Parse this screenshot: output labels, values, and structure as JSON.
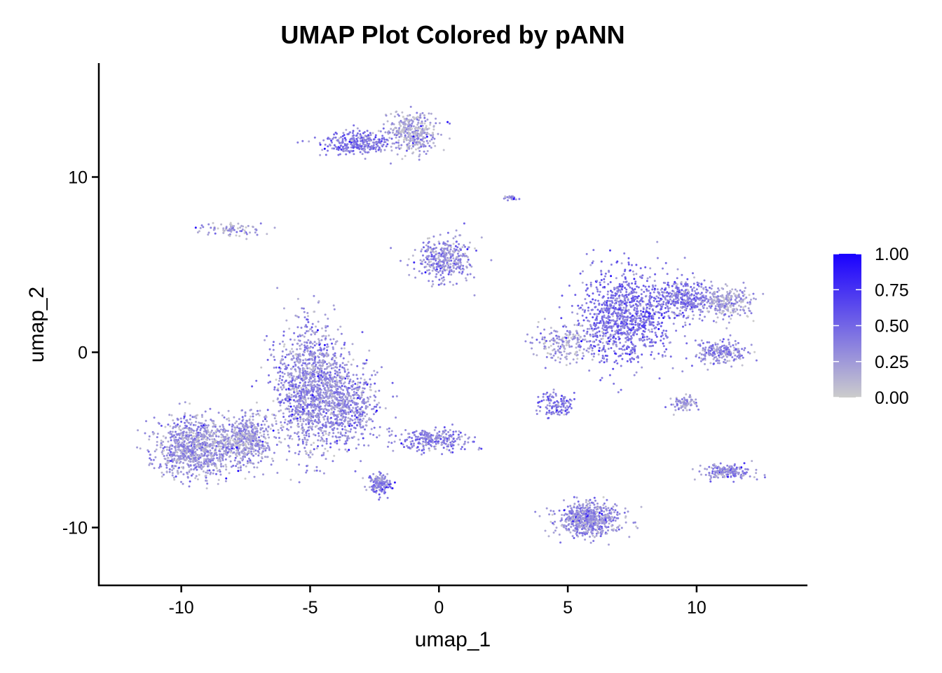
{
  "chart_data": {
    "type": "scatter",
    "title": "UMAP Plot Colored by pANN",
    "xlabel": "umap_1",
    "ylabel": "umap_2",
    "xlim": [
      -13.2,
      14.3
    ],
    "ylim": [
      -13.3,
      16.5
    ],
    "xticks": [
      -10,
      -5,
      0,
      5,
      10
    ],
    "xtick_labels": [
      "-10",
      "-5",
      "0",
      "5",
      "10"
    ],
    "yticks": [
      -10,
      0,
      10
    ],
    "ytick_labels": [
      "-10",
      "0",
      "10"
    ],
    "grid": false,
    "legend_position": "right",
    "color_scale": {
      "variable": "pANN",
      "low_color": "#cccccc",
      "high_color": "#1a00ff",
      "range": [
        0.0,
        1.0
      ],
      "ticks": [
        1.0,
        0.75,
        0.5,
        0.25,
        0.0
      ],
      "tick_labels": [
        "1.00",
        "0.75",
        "0.50",
        "0.25",
        "0.00"
      ]
    },
    "clusters": [
      {
        "center": [
          -9.5,
          -5.5
        ],
        "spread": [
          1.4,
          1.5
        ],
        "n": 900,
        "mean_pANN": 0.25
      },
      {
        "center": [
          -7.5,
          -5.0
        ],
        "spread": [
          1.0,
          1.4
        ],
        "n": 500,
        "mean_pANN": 0.25
      },
      {
        "center": [
          -5.0,
          -2.0
        ],
        "spread": [
          1.2,
          3.2
        ],
        "n": 1300,
        "mean_pANN": 0.3
      },
      {
        "center": [
          -3.5,
          -3.0
        ],
        "spread": [
          1.0,
          2.0
        ],
        "n": 500,
        "mean_pANN": 0.3
      },
      {
        "center": [
          -2.3,
          -7.5
        ],
        "spread": [
          0.4,
          0.5
        ],
        "n": 150,
        "mean_pANN": 0.35
      },
      {
        "center": [
          -0.3,
          -5.0
        ],
        "spread": [
          1.3,
          0.6
        ],
        "n": 250,
        "mean_pANN": 0.35
      },
      {
        "center": [
          -1.0,
          12.5
        ],
        "spread": [
          0.9,
          1.1
        ],
        "n": 350,
        "mean_pANN": 0.2
      },
      {
        "center": [
          -3.2,
          12.0
        ],
        "spread": [
          1.3,
          0.6
        ],
        "n": 300,
        "mean_pANN": 0.4
      },
      {
        "center": [
          0.2,
          5.3
        ],
        "spread": [
          1.0,
          1.1
        ],
        "n": 350,
        "mean_pANN": 0.3
      },
      {
        "center": [
          -8.0,
          7.0
        ],
        "spread": [
          1.1,
          0.35
        ],
        "n": 80,
        "mean_pANN": 0.2
      },
      {
        "center": [
          7.2,
          2.0
        ],
        "spread": [
          1.6,
          2.4
        ],
        "n": 1000,
        "mean_pANN": 0.45
      },
      {
        "center": [
          9.5,
          3.0
        ],
        "spread": [
          1.0,
          1.0
        ],
        "n": 350,
        "mean_pANN": 0.4
      },
      {
        "center": [
          11.2,
          2.8
        ],
        "spread": [
          0.8,
          0.8
        ],
        "n": 250,
        "mean_pANN": 0.2
      },
      {
        "center": [
          11.0,
          0.0
        ],
        "spread": [
          0.9,
          0.6
        ],
        "n": 200,
        "mean_pANN": 0.3
      },
      {
        "center": [
          5.0,
          0.5
        ],
        "spread": [
          1.2,
          1.0
        ],
        "n": 200,
        "mean_pANN": 0.2
      },
      {
        "center": [
          4.5,
          -3.0
        ],
        "spread": [
          0.7,
          0.7
        ],
        "n": 120,
        "mean_pANN": 0.4
      },
      {
        "center": [
          9.5,
          -2.9
        ],
        "spread": [
          0.5,
          0.4
        ],
        "n": 80,
        "mean_pANN": 0.25
      },
      {
        "center": [
          11.2,
          -6.8
        ],
        "spread": [
          0.9,
          0.4
        ],
        "n": 180,
        "mean_pANN": 0.3
      },
      {
        "center": [
          5.8,
          -9.5
        ],
        "spread": [
          1.1,
          0.9
        ],
        "n": 650,
        "mean_pANN": 0.3
      },
      {
        "center": [
          2.8,
          8.8
        ],
        "spread": [
          0.3,
          0.15
        ],
        "n": 20,
        "mean_pANN": 0.3
      }
    ]
  }
}
